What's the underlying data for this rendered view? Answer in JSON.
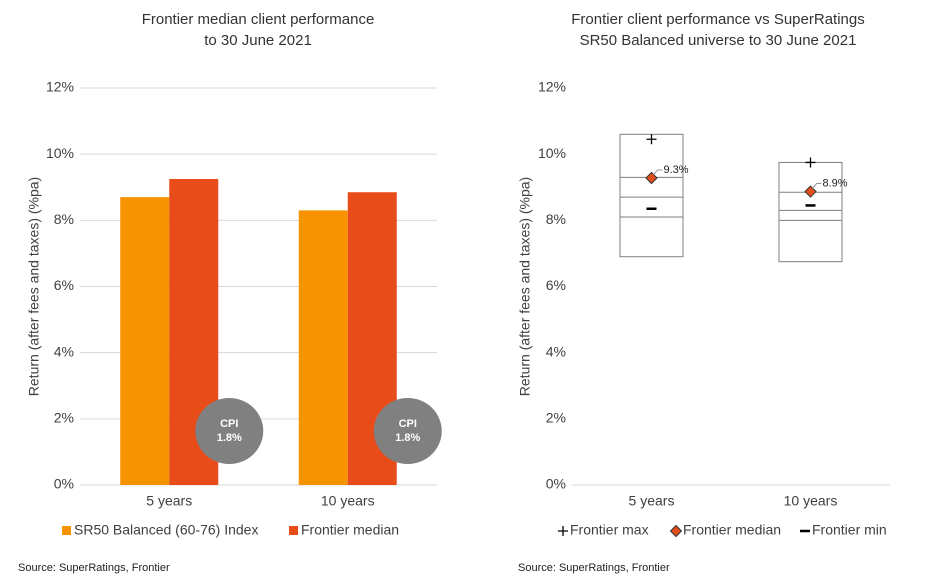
{
  "charts": [
    {
      "chart_data": {
        "type": "bar",
        "title": "Frontier median client performance",
        "subtitle": "to 30 June 2021",
        "y_label": "Return (after fees and taxes) (%pa)",
        "categories": [
          "5 years",
          "10 years"
        ],
        "series": [
          {
            "name": "SR50 Balanced (60-76) Index",
            "color": "#f79200",
            "values": [
              8.7,
              8.3
            ]
          },
          {
            "name": "Frontier median",
            "color": "#e84c18",
            "values": [
              9.25,
              8.85
            ]
          }
        ],
        "annotations": [
          {
            "label": "CPI",
            "value_label": "1.8%"
          },
          {
            "label": "CPI",
            "value_label": "1.8%"
          }
        ],
        "ylim": [
          0,
          12
        ],
        "yticks": [
          {
            "value": 0,
            "label": "0%"
          },
          {
            "value": 2,
            "label": "2%"
          },
          {
            "value": 4,
            "label": "4%"
          },
          {
            "value": 6,
            "label": "6%"
          },
          {
            "value": 8,
            "label": "8%"
          },
          {
            "value": 10,
            "label": "10%"
          },
          {
            "value": 12,
            "label": "12%"
          }
        ],
        "grid": true,
        "source": "Source: SuperRatings, Frontier"
      }
    },
    {
      "chart_data": {
        "type": "box",
        "title": "Frontier client performance vs SuperRatings",
        "subtitle": "SR50 Balanced universe to 30 June 2021",
        "y_label": "Return (after fees and taxes) (%pa)",
        "categories": [
          "5 years",
          "10 years"
        ],
        "box_lows": [
          6.9,
          6.75
        ],
        "box_highs": [
          10.6,
          9.75
        ],
        "box_lines": [
          [
            8.1,
            8.7,
            9.3
          ],
          [
            8.0,
            8.3,
            8.85
          ]
        ],
        "series": [
          {
            "name": "Frontier max",
            "marker": "plus",
            "color": "#000000",
            "values": [
              10.45,
              9.75
            ]
          },
          {
            "name": "Frontier median",
            "marker": "diamond",
            "color": "#e04e1a",
            "values": [
              9.28,
              8.87
            ],
            "value_labels": [
              "9.3%",
              "8.9%"
            ]
          },
          {
            "name": "Frontier min",
            "marker": "dash",
            "color": "#000000",
            "values": [
              8.35,
              8.45
            ]
          }
        ],
        "ylim": [
          0,
          12
        ],
        "yticks": [
          {
            "value": 0,
            "label": "0%"
          },
          {
            "value": 2,
            "label": "2%"
          },
          {
            "value": 4,
            "label": "4%"
          },
          {
            "value": 6,
            "label": "6%"
          },
          {
            "value": 8,
            "label": "8%"
          },
          {
            "value": 10,
            "label": "10%"
          },
          {
            "value": 12,
            "label": "12%"
          }
        ],
        "grid": false,
        "source": "Source: SuperRatings, Frontier"
      }
    }
  ]
}
